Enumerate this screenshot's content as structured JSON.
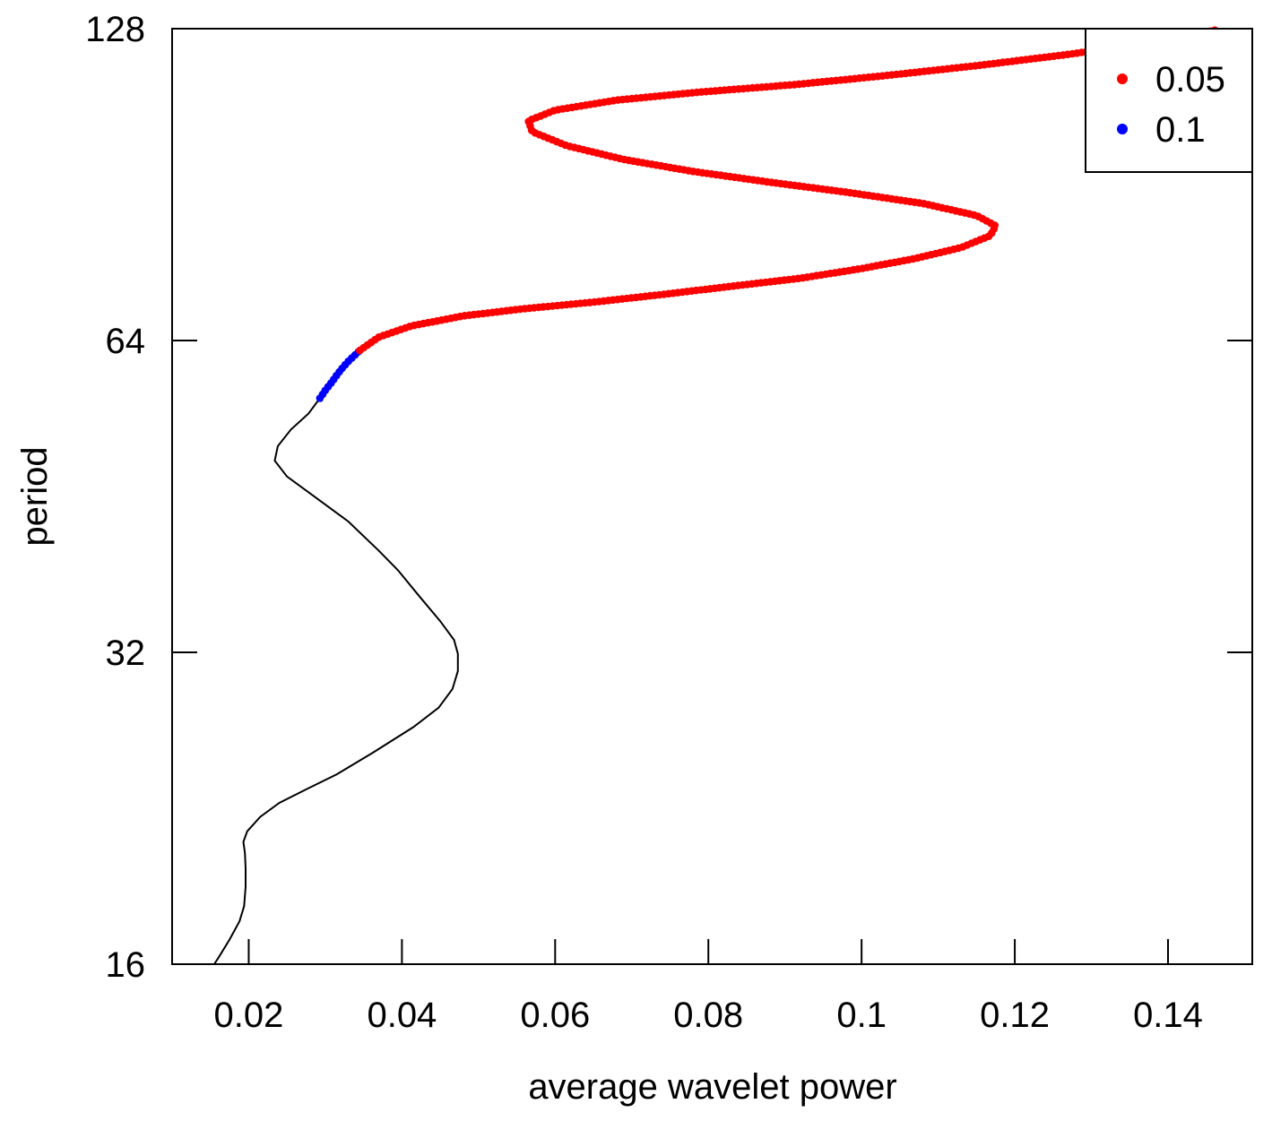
{
  "chart_data": {
    "type": "scatter",
    "xlabel": "average wavelet power",
    "ylabel": "period",
    "x_ticks": [
      "0.02",
      "0.04",
      "0.06",
      "0.08",
      "0.1",
      "0.12",
      "0.14"
    ],
    "x_tick_values": [
      0.02,
      0.04,
      0.06,
      0.08,
      0.1,
      0.12,
      0.14
    ],
    "y_ticks": [
      "16",
      "32",
      "64",
      "128"
    ],
    "y_tick_values": [
      16,
      32,
      64,
      128
    ],
    "y_scale": "log2",
    "xlim": [
      0.01,
      0.151
    ],
    "ylim": [
      16,
      128
    ],
    "legend_position": "top-right",
    "legend": [
      {
        "label": "0.05",
        "color": "#ff0000"
      },
      {
        "label": "0.1",
        "color": "#0000ff"
      }
    ],
    "curve": {
      "color": "#000000",
      "points": [
        [
          0.0155,
          16.0
        ],
        [
          0.0162,
          16.3
        ],
        [
          0.0175,
          16.9
        ],
        [
          0.0188,
          17.6
        ],
        [
          0.0194,
          18.2
        ],
        [
          0.0196,
          19.0
        ],
        [
          0.0196,
          19.8
        ],
        [
          0.0195,
          20.5
        ],
        [
          0.0193,
          21.0
        ],
        [
          0.0198,
          21.5
        ],
        [
          0.0215,
          22.2
        ],
        [
          0.024,
          22.9
        ],
        [
          0.0275,
          23.6
        ],
        [
          0.0315,
          24.4
        ],
        [
          0.0362,
          25.6
        ],
        [
          0.0415,
          27.1
        ],
        [
          0.0448,
          28.3
        ],
        [
          0.0466,
          29.5
        ],
        [
          0.0473,
          30.7
        ],
        [
          0.0473,
          31.9
        ],
        [
          0.0468,
          32.9
        ],
        [
          0.045,
          34.3
        ],
        [
          0.0422,
          36.3
        ],
        [
          0.0395,
          38.4
        ],
        [
          0.037,
          40.1
        ],
        [
          0.033,
          42.8
        ],
        [
          0.0283,
          45.4
        ],
        [
          0.025,
          47.3
        ],
        [
          0.0234,
          49.0
        ],
        [
          0.0238,
          50.6
        ],
        [
          0.0255,
          52.5
        ],
        [
          0.0278,
          54.4
        ],
        [
          0.0293,
          56.3
        ]
      ]
    },
    "series": [
      {
        "name": "0.1",
        "color": "#0000ff",
        "points": [
          [
            0.0293,
            56.3
          ],
          [
            0.03,
            57.3
          ],
          [
            0.0308,
            58.3
          ],
          [
            0.0316,
            59.4
          ],
          [
            0.0323,
            60.3
          ],
          [
            0.033,
            61.1
          ],
          [
            0.0337,
            61.8
          ],
          [
            0.0345,
            62.6
          ]
        ]
      },
      {
        "name": "0.05",
        "color": "#ff0000",
        "points": [
          [
            0.0345,
            62.6
          ],
          [
            0.037,
            64.5
          ],
          [
            0.0412,
            66.1
          ],
          [
            0.048,
            67.6
          ],
          [
            0.056,
            68.7
          ],
          [
            0.065,
            69.7
          ],
          [
            0.074,
            70.9
          ],
          [
            0.083,
            72.2
          ],
          [
            0.092,
            73.5
          ],
          [
            0.1,
            75.1
          ],
          [
            0.107,
            76.8
          ],
          [
            0.113,
            78.7
          ],
          [
            0.1168,
            80.8
          ],
          [
            0.1175,
            82.6
          ],
          [
            0.115,
            84.5
          ],
          [
            0.108,
            86.8
          ],
          [
            0.098,
            89.0
          ],
          [
            0.088,
            91.0
          ],
          [
            0.078,
            93.2
          ],
          [
            0.069,
            95.7
          ],
          [
            0.0615,
            98.7
          ],
          [
            0.057,
            101.8
          ],
          [
            0.0565,
            104.3
          ],
          [
            0.06,
            106.8
          ],
          [
            0.068,
            109.2
          ],
          [
            0.079,
            111.2
          ],
          [
            0.091,
            113.0
          ],
          [
            0.103,
            115.3
          ],
          [
            0.115,
            117.9
          ],
          [
            0.127,
            120.9
          ],
          [
            0.136,
            123.6
          ],
          [
            0.142,
            125.7
          ],
          [
            0.1462,
            127.6
          ]
        ]
      }
    ]
  }
}
